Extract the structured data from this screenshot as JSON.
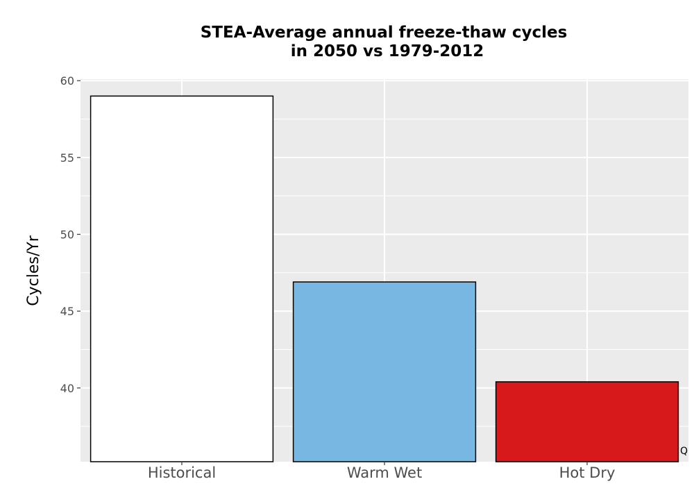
{
  "chart_data": {
    "type": "bar",
    "title_lines": [
      "STEA-Average annual freeze-thaw cycles",
      "in 2050 vs 1979-2012"
    ],
    "xlabel": "",
    "ylabel": "Cycles/Yr",
    "categories": [
      "Historical",
      "Warm Wet",
      "Hot Dry"
    ],
    "values": [
      59.0,
      46.9,
      40.4
    ],
    "colors": [
      "#ffffff",
      "#78b7e1",
      "#d7191c"
    ],
    "ylim": [
      35.2,
      60.1
    ],
    "yticks": [
      40,
      45,
      50,
      55,
      60
    ],
    "grid": true,
    "panel_background": "#ebebeb",
    "grid_color": "#ffffff",
    "bar_outline_color": "#000000",
    "corner_note": "Q"
  }
}
